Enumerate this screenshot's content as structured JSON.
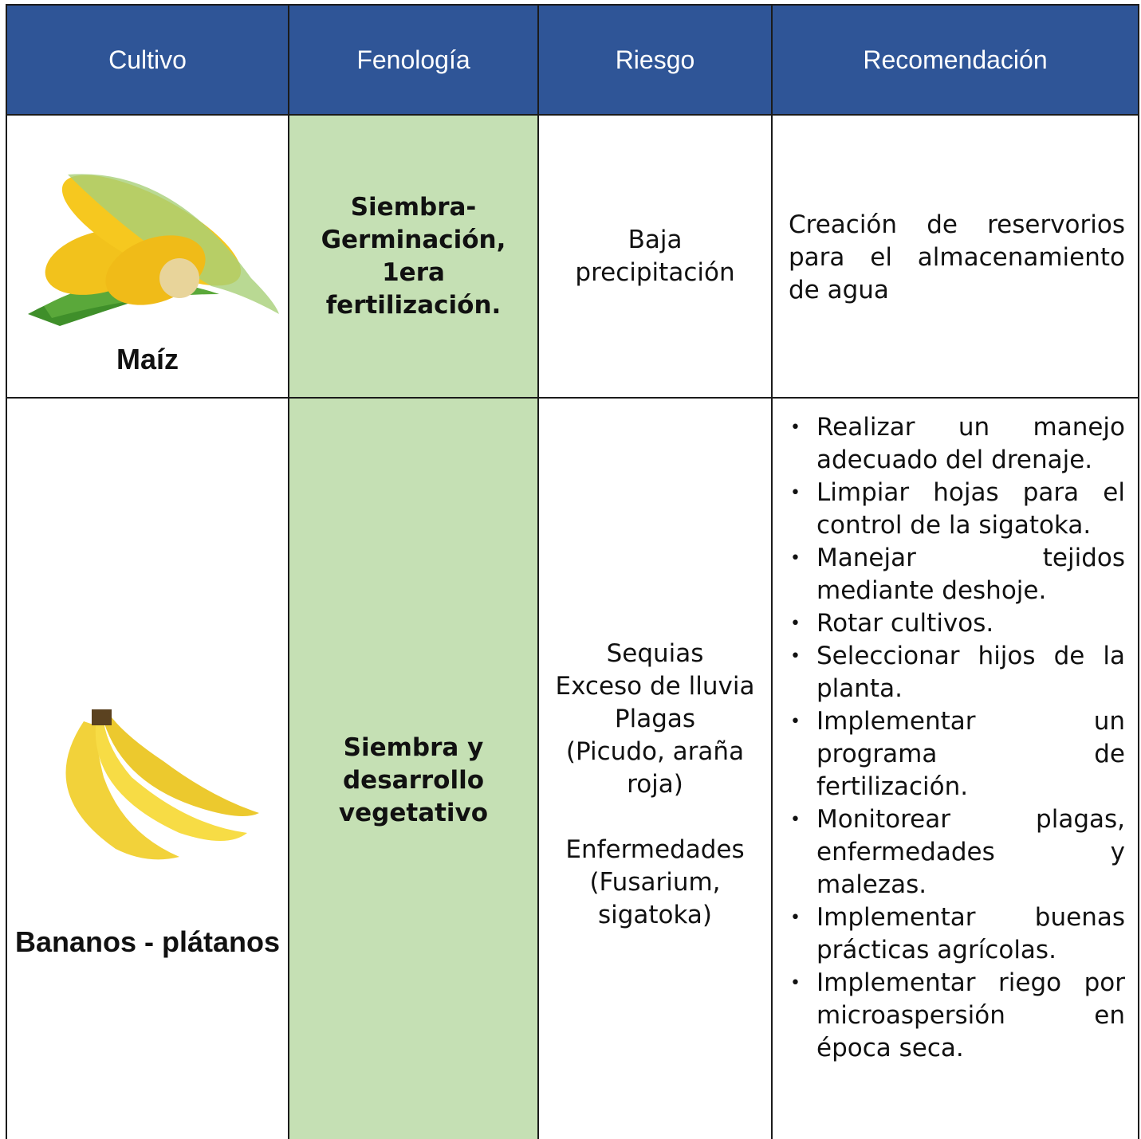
{
  "table": {
    "header": [
      "Cultivo",
      "Fenología",
      "Riesgo",
      "Recomendación"
    ],
    "rows": [
      {
        "cultivo": "Maíz",
        "fenologia": "Siembra-Germinación, 1era fertilización.",
        "riesgo": [
          "Baja precipitación"
        ],
        "recomendacion": "Creación de reservorios para el almacenamiento de agua"
      },
      {
        "cultivo": "Bananos - plátanos",
        "fenologia": "Siembra y desarrollo vegetativo",
        "riesgo": [
          "Sequias",
          "Exceso de lluvia",
          "Plagas",
          "(Picudo, araña roja)",
          "Enfermedades",
          "(Fusarium, sigatoka)"
        ],
        "recomendacion": [
          "Realizar un manejo adecuado del drenaje.",
          "Limpiar hojas para el control de la sigatoka.",
          "Manejar tejidos mediante deshoje.",
          "Rotar cultivos.",
          "Seleccionar hijos de la planta.",
          "Implementar un programa de fertilización.",
          "Monitorear plagas, enfermedades y malezas.",
          "Implementar buenas prácticas agrícolas.",
          "Implementar riego por microaspersión en época seca."
        ]
      }
    ]
  }
}
